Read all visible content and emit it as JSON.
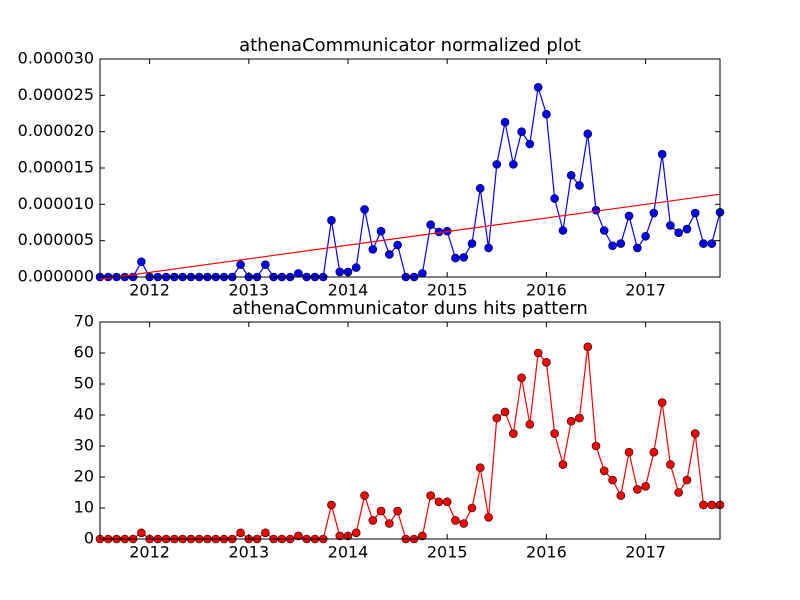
{
  "chart_data": [
    {
      "type": "line",
      "title": "athenaCommunicator normalized plot",
      "x": [
        2011.5,
        2011.583,
        2011.667,
        2011.75,
        2011.833,
        2011.917,
        2012,
        2012.083,
        2012.167,
        2012.25,
        2012.333,
        2012.417,
        2012.5,
        2012.583,
        2012.667,
        2012.75,
        2012.833,
        2012.917,
        2013,
        2013.083,
        2013.167,
        2013.25,
        2013.333,
        2013.417,
        2013.5,
        2013.583,
        2013.667,
        2013.75,
        2013.833,
        2013.917,
        2014,
        2014.083,
        2014.167,
        2014.25,
        2014.333,
        2014.417,
        2014.5,
        2014.583,
        2014.667,
        2014.75,
        2014.833,
        2014.917,
        2015,
        2015.083,
        2015.167,
        2015.25,
        2015.333,
        2015.417,
        2015.5,
        2015.583,
        2015.667,
        2015.75,
        2015.833,
        2015.917,
        2016,
        2016.083,
        2016.167,
        2016.25,
        2016.333,
        2016.417,
        2016.5,
        2016.583,
        2016.667,
        2016.75,
        2016.833,
        2016.917,
        2017,
        2017.083,
        2017.167,
        2017.25,
        2017.333,
        2017.417,
        2017.5,
        2017.583,
        2017.667,
        2017.75
      ],
      "series": [
        {
          "color": "#0000ff",
          "markers": true,
          "values": [
            0,
            0,
            0,
            0,
            0,
            2.1e-06,
            0,
            0,
            0,
            0,
            0,
            0,
            0,
            0,
            0,
            0,
            0,
            1.7e-06,
            0,
            0,
            1.7e-06,
            0,
            0,
            0,
            5e-07,
            0,
            0,
            0,
            7.8e-06,
            7e-07,
            7e-07,
            1.3e-06,
            9.3e-06,
            3.8e-06,
            6.3e-06,
            3.1e-06,
            4.4e-06,
            0,
            0,
            5e-07,
            7.2e-06,
            6.2e-06,
            6.3e-06,
            2.6e-06,
            2.7e-06,
            4.6e-06,
            1.22e-05,
            4e-06,
            1.55e-05,
            2.13e-05,
            1.55e-05,
            2e-05,
            1.83e-05,
            2.61e-05,
            2.24e-05,
            1.08e-05,
            6.4e-06,
            1.4e-05,
            1.26e-05,
            1.97e-05,
            9.2e-06,
            6.4e-06,
            4.3e-06,
            4.6e-06,
            8.4e-06,
            4e-06,
            5.6e-06,
            8.8e-06,
            1.69e-05,
            7.1e-06,
            6.1e-06,
            6.6e-06,
            8.8e-06,
            4.6e-06,
            4.6e-06,
            8.9e-06
          ]
        },
        {
          "color": "#ff0000",
          "markers": false,
          "x": [
            2011.5,
            2017.75
          ],
          "values": [
            -3e-07,
            1.14e-05
          ]
        }
      ],
      "xlim": [
        2011.5,
        2017.75
      ],
      "xticks": [
        2012,
        2013,
        2014,
        2015,
        2016,
        2017
      ],
      "ylim": [
        0,
        3e-05
      ],
      "yticks": [
        {
          "value": 0,
          "label": "0.000000"
        },
        {
          "value": 5e-06,
          "label": "0.000005"
        },
        {
          "value": 1e-05,
          "label": "0.000010"
        },
        {
          "value": 1.5e-05,
          "label": "0.000015"
        },
        {
          "value": 2e-05,
          "label": "0.000020"
        },
        {
          "value": 2.5e-05,
          "label": "0.000025"
        },
        {
          "value": 3e-05,
          "label": "0.000030"
        }
      ]
    },
    {
      "type": "line",
      "title": "athenaCommunicator duns hits pattern",
      "x": [
        2011.5,
        2011.583,
        2011.667,
        2011.75,
        2011.833,
        2011.917,
        2012,
        2012.083,
        2012.167,
        2012.25,
        2012.333,
        2012.417,
        2012.5,
        2012.583,
        2012.667,
        2012.75,
        2012.833,
        2012.917,
        2013,
        2013.083,
        2013.167,
        2013.25,
        2013.333,
        2013.417,
        2013.5,
        2013.583,
        2013.667,
        2013.75,
        2013.833,
        2013.917,
        2014,
        2014.083,
        2014.167,
        2014.25,
        2014.333,
        2014.417,
        2014.5,
        2014.583,
        2014.667,
        2014.75,
        2014.833,
        2014.917,
        2015,
        2015.083,
        2015.167,
        2015.25,
        2015.333,
        2015.417,
        2015.5,
        2015.583,
        2015.667,
        2015.75,
        2015.833,
        2015.917,
        2016,
        2016.083,
        2016.167,
        2016.25,
        2016.333,
        2016.417,
        2016.5,
        2016.583,
        2016.667,
        2016.75,
        2016.833,
        2016.917,
        2017,
        2017.083,
        2017.167,
        2017.25,
        2017.333,
        2017.417,
        2017.5,
        2017.583,
        2017.667,
        2017.75
      ],
      "series": [
        {
          "color": "#ff0000",
          "markers": true,
          "values": [
            0,
            0,
            0,
            0,
            0,
            2,
            0,
            0,
            0,
            0,
            0,
            0,
            0,
            0,
            0,
            0,
            0,
            2,
            0,
            0,
            2,
            0,
            0,
            0,
            1,
            0,
            0,
            0,
            11,
            1,
            1,
            2,
            14,
            6,
            9,
            5,
            9,
            0,
            0,
            1,
            14,
            12,
            12,
            6,
            5,
            10,
            23,
            7,
            39,
            41,
            34,
            52,
            37,
            60,
            57,
            34,
            24,
            38,
            39,
            62,
            30,
            22,
            19,
            14,
            28,
            16,
            17,
            28,
            44,
            24,
            15,
            19,
            34,
            11,
            11,
            11
          ]
        }
      ],
      "xlim": [
        2011.5,
        2017.75
      ],
      "xticks": [
        2012,
        2013,
        2014,
        2015,
        2016,
        2017
      ],
      "ylim": [
        0,
        70
      ],
      "yticks": [
        0,
        10,
        20,
        30,
        40,
        50,
        60,
        70
      ]
    }
  ]
}
